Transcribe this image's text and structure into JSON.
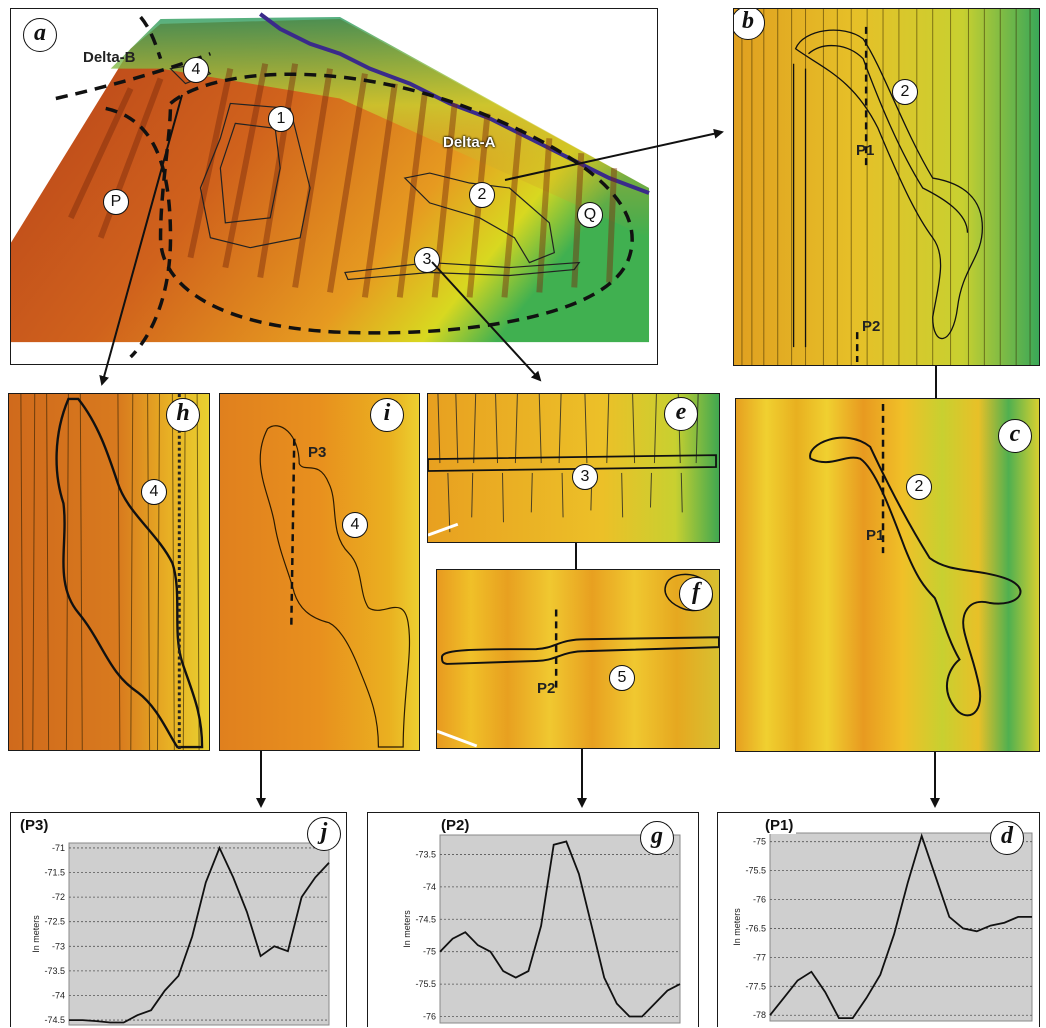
{
  "panels": {
    "a": {
      "badge": "a",
      "labels": {
        "delta_b": "Delta-B",
        "delta_a": "Delta-A",
        "p": "P",
        "q": "Q"
      },
      "features": [
        "1",
        "2",
        "3",
        "4"
      ]
    },
    "b": {
      "badge": "b",
      "feature": "2",
      "p1": "P1",
      "p2": "P2"
    },
    "c": {
      "badge": "c",
      "feature": "2",
      "p1": "P1"
    },
    "e": {
      "badge": "e",
      "feature": "3"
    },
    "f": {
      "badge": "f",
      "feature": "5",
      "p2": "P2"
    },
    "h": {
      "badge": "h",
      "feature": "4"
    },
    "i": {
      "badge": "i",
      "feature": "4",
      "p3": "P3"
    }
  },
  "profiles": {
    "j": {
      "badge": "j",
      "title": "(P3)",
      "ylabel": "In meters",
      "ticks": [
        "-71",
        "-71.5",
        "-72",
        "-72.5",
        "-73",
        "-73.5",
        "-74",
        "-74.5"
      ]
    },
    "g": {
      "badge": "g",
      "title": "(P2)",
      "ylabel": "In meters",
      "ticks": [
        "-73.5",
        "-74",
        "-74.5",
        "-75",
        "-75.5",
        "-76"
      ]
    },
    "d": {
      "badge": "d",
      "title": "(P1)",
      "ylabel": "In meters",
      "ticks": [
        "-75",
        "-75.5",
        "-76",
        "-76.5",
        "-77",
        "-77.5",
        "-78"
      ]
    }
  },
  "chart_data": [
    {
      "type": "line",
      "title": "(P3)",
      "ylabel": "In meters",
      "ylim": [
        -74.6,
        -70.9
      ],
      "y": [
        -74.5,
        -74.5,
        -74.52,
        -74.55,
        -74.55,
        -74.4,
        -74.3,
        -73.9,
        -73.6,
        -72.8,
        -71.7,
        -71.0,
        -71.6,
        -72.3,
        -73.2,
        -73.0,
        -73.1,
        -72.0,
        -71.6,
        -71.3
      ]
    },
    {
      "type": "line",
      "title": "(P2)",
      "ylabel": "In meters",
      "ylim": [
        -76.1,
        -73.2
      ],
      "y": [
        -75.0,
        -74.8,
        -74.7,
        -74.9,
        -75.0,
        -75.3,
        -75.4,
        -75.3,
        -74.6,
        -73.35,
        -73.3,
        -73.8,
        -74.6,
        -75.4,
        -75.8,
        -76.0,
        -76.0,
        -75.8,
        -75.6,
        -75.5
      ]
    },
    {
      "type": "line",
      "title": "(P1)",
      "ylabel": "In meters",
      "ylim": [
        -78.1,
        -74.85
      ],
      "y": [
        -78.0,
        -77.7,
        -77.4,
        -77.25,
        -77.6,
        -78.05,
        -78.05,
        -77.7,
        -77.3,
        -76.6,
        -75.7,
        -74.9,
        -75.6,
        -76.3,
        -76.5,
        -76.55,
        -76.45,
        -76.4,
        -76.3,
        -76.3
      ]
    }
  ]
}
